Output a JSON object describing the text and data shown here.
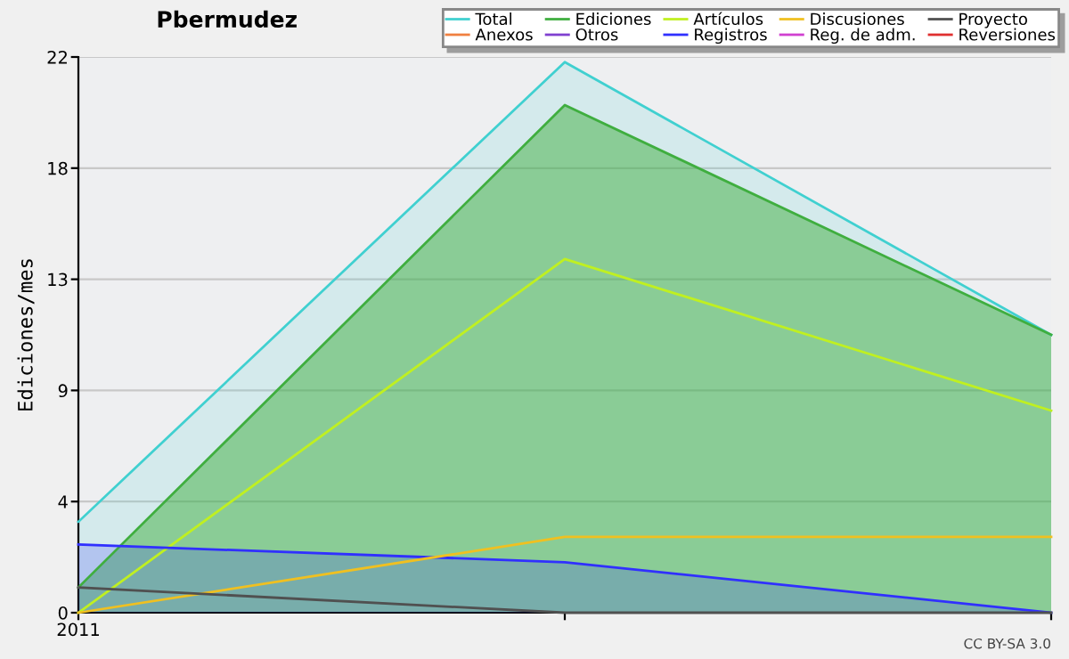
{
  "chart_data": {
    "type": "line",
    "title": "Pbermudez",
    "ylabel": "Ediciones/mes",
    "categories": [
      "2011",
      null,
      null
    ],
    "series": [
      {
        "name": "Total",
        "type": "area",
        "color": "#40d0d0",
        "values": [
          3.6,
          21.8,
          11
        ]
      },
      {
        "name": "Anexos",
        "color": "#f08040",
        "values": [
          null,
          null,
          null
        ]
      },
      {
        "name": "Ediciones",
        "type": "area",
        "color": "#3fae3f",
        "values": [
          1,
          20.1,
          11
        ]
      },
      {
        "name": "Otros",
        "color": "#8040d0",
        "values": [
          null,
          null,
          null
        ]
      },
      {
        "name": "Artículos",
        "color": "#c0f020",
        "values": [
          0,
          14,
          8
        ]
      },
      {
        "name": "Registros",
        "type": "area",
        "color": "#3030ff",
        "values": [
          2.7,
          2,
          0
        ]
      },
      {
        "name": "Discusiones",
        "color": "#f0c020",
        "values": [
          0,
          3,
          3
        ]
      },
      {
        "name": "Reg. de adm.",
        "color": "#d040d0",
        "values": [
          null,
          null,
          null
        ]
      },
      {
        "name": "Proyecto",
        "color": "#505050",
        "values": [
          1,
          0,
          0
        ]
      },
      {
        "name": "Reversiones",
        "color": "#e03030",
        "values": [
          null,
          null,
          null
        ]
      }
    ],
    "ylim": [
      0,
      22
    ],
    "yticks": [
      0,
      {
        "value": 4.4,
        "label": "4"
      },
      {
        "value": 8.8,
        "label": "9"
      },
      {
        "value": 13.2,
        "label": "13"
      },
      {
        "value": 17.6,
        "label": "18"
      },
      22
    ],
    "grid": "y",
    "legend": "top right",
    "marker": "none",
    "annotations": [
      "CC BY-SA 3.0"
    ]
  }
}
